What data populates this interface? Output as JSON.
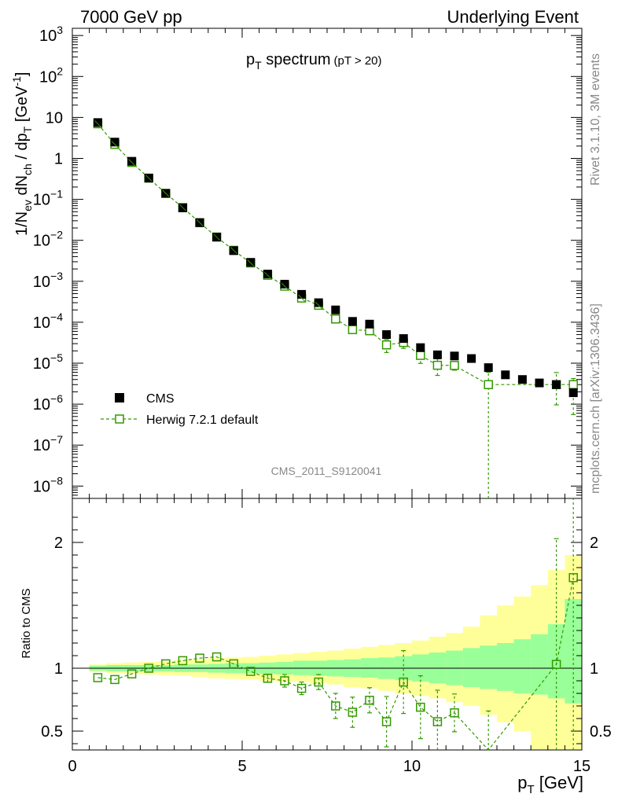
{
  "header": {
    "left": "7000 GeV pp",
    "right": "Underlying Event"
  },
  "side_labels": {
    "rivet": "Rivet 3.1.10,  3M events",
    "mcplots": "mcplots.cern.ch [arXiv:1306.3436]"
  },
  "chart_data": {
    "type": "scatter",
    "title_main": "p",
    "title_sub": "T",
    "title_rest": " spectrum",
    "title_cut": "(pT > 20)",
    "analysis_id": "CMS_2011_S9120041",
    "ylabel_parts": [
      "1/N",
      "ev",
      " dN",
      "ch",
      " / dp",
      "T",
      " [GeV",
      "-1",
      "]"
    ],
    "ratio_ylabel": "Ratio to CMS",
    "xlabel": "p",
    "xlabel_sub": "T",
    "xlabel_unit": " [GeV]",
    "xlim": [
      0,
      15
    ],
    "ylim": [
      5e-09,
      1500
    ],
    "ratio_ylim": [
      0.35,
      2.35
    ],
    "yscale": "log",
    "x_ticks": [
      "0",
      "5",
      "10",
      "15"
    ],
    "y_ticks": [
      {
        "v": 1000,
        "b": "10",
        "e": "3"
      },
      {
        "v": 100,
        "b": "10",
        "e": "2"
      },
      {
        "v": 10,
        "b": "10",
        "e": ""
      },
      {
        "v": 1,
        "b": "1",
        "e": ""
      },
      {
        "v": 0.1,
        "b": "10",
        "e": "−1"
      },
      {
        "v": 0.01,
        "b": "10",
        "e": "−2"
      },
      {
        "v": 0.001,
        "b": "10",
        "e": "−3"
      },
      {
        "v": 0.0001,
        "b": "10",
        "e": "−4"
      },
      {
        "v": 1e-05,
        "b": "10",
        "e": "−5"
      },
      {
        "v": 1e-06,
        "b": "10",
        "e": "−6"
      },
      {
        "v": 1e-07,
        "b": "10",
        "e": "−7"
      },
      {
        "v": 1e-08,
        "b": "10",
        "e": "−8"
      }
    ],
    "ratio_ticks": [
      "0.5",
      "1",
      "2"
    ],
    "legend_position": "bottom-left",
    "colors": {
      "cms": "#000000",
      "herwig": "#339900",
      "band_inner": "#99ff99",
      "band_outer": "#ffff99"
    },
    "series": [
      {
        "name": "CMS",
        "x": [
          0.75,
          1.25,
          1.75,
          2.25,
          2.75,
          3.25,
          3.75,
          4.25,
          4.75,
          5.25,
          5.75,
          6.25,
          6.75,
          7.25,
          7.75,
          8.25,
          8.75,
          9.25,
          9.75,
          10.25,
          10.75,
          11.25,
          11.75,
          12.25,
          12.75,
          13.25,
          13.75,
          14.25,
          14.75
        ],
        "y": [
          7.5,
          2.5,
          0.85,
          0.33,
          0.14,
          0.062,
          0.027,
          0.012,
          0.0056,
          0.0029,
          0.0015,
          0.00085,
          0.00048,
          0.0003,
          0.0002,
          0.000105,
          9e-05,
          5e-05,
          4e-05,
          2.4e-05,
          1.6e-05,
          1.5e-05,
          1.3e-05,
          7.8e-06,
          5.2e-06,
          4e-06,
          3.3e-06,
          3e-06,
          1.9e-06
        ]
      },
      {
        "name": "Herwig 7.2.1 default",
        "x": [
          0.75,
          1.25,
          1.75,
          2.25,
          2.75,
          3.25,
          3.75,
          4.25,
          4.75,
          5.25,
          5.75,
          6.25,
          6.75,
          7.25,
          7.75,
          8.25,
          8.75,
          9.25,
          9.75,
          10.25,
          10.75,
          11.25,
          12.25,
          14.25,
          14.75
        ],
        "y": [
          7.0,
          2.2,
          0.8,
          0.33,
          0.14,
          0.063,
          0.027,
          0.012,
          0.0057,
          0.0028,
          0.0014,
          0.00076,
          0.00039,
          0.00026,
          0.00012,
          6.6e-05,
          6.2e-05,
          2.8e-05,
          3.2e-05,
          1.55e-05,
          8.9e-06,
          8.8e-06,
          3e-06,
          3e-06,
          3e-06
        ],
        "ratio": [
          0.925,
          0.91,
          0.955,
          1.0,
          1.035,
          1.06,
          1.08,
          1.09,
          1.035,
          0.975,
          0.92,
          0.9,
          0.84,
          0.89,
          0.7,
          0.65,
          0.745,
          0.575,
          0.89,
          0.69,
          0.575,
          0.645,
          0.33,
          1.03,
          1.72
        ],
        "ratio_err_lo": [
          0,
          0,
          0,
          0,
          0,
          0,
          0,
          0,
          0,
          0,
          0.03,
          0.05,
          0.05,
          0.06,
          0.1,
          0.12,
          0.1,
          0.2,
          0.25,
          0.25,
          0.25,
          0.15,
          0.33,
          0.7,
          1.4
        ],
        "ratio_err_hi": [
          0,
          0,
          0,
          0,
          0,
          0,
          0,
          0,
          0,
          0,
          0.03,
          0.05,
          0.05,
          0.06,
          0.1,
          0.12,
          0.1,
          0.2,
          0.25,
          0.25,
          0.25,
          0.15,
          0.33,
          1.0,
          0.7
        ]
      }
    ],
    "bands": {
      "edges": [
        0.5,
        1.0,
        1.5,
        2.0,
        2.5,
        3.0,
        3.5,
        4.0,
        4.5,
        5.0,
        5.5,
        6.0,
        6.5,
        7.0,
        7.5,
        8.0,
        8.5,
        9.0,
        9.5,
        10.0,
        10.5,
        11.0,
        11.5,
        12.0,
        12.5,
        13.0,
        13.5,
        14.0,
        14.5,
        15.0
      ],
      "inner_lo": [
        0.98,
        0.975,
        0.975,
        0.975,
        0.975,
        0.97,
        0.97,
        0.965,
        0.96,
        0.96,
        0.955,
        0.95,
        0.945,
        0.94,
        0.935,
        0.93,
        0.925,
        0.915,
        0.905,
        0.895,
        0.88,
        0.865,
        0.85,
        0.835,
        0.82,
        0.8,
        0.79,
        0.76,
        0.72
      ],
      "inner_hi": [
        1.02,
        1.025,
        1.025,
        1.025,
        1.025,
        1.03,
        1.03,
        1.035,
        1.04,
        1.04,
        1.045,
        1.05,
        1.06,
        1.06,
        1.065,
        1.07,
        1.08,
        1.085,
        1.095,
        1.11,
        1.125,
        1.14,
        1.16,
        1.18,
        1.2,
        1.23,
        1.27,
        1.35,
        1.55
      ],
      "outer_lo": [
        0.97,
        0.96,
        0.955,
        0.95,
        0.945,
        0.94,
        0.93,
        0.92,
        0.915,
        0.91,
        0.9,
        0.895,
        0.89,
        0.88,
        0.87,
        0.85,
        0.84,
        0.82,
        0.8,
        0.78,
        0.76,
        0.73,
        0.7,
        0.63,
        0.57,
        0.5,
        0.35,
        0.35,
        0.35
      ],
      "outer_hi": [
        1.03,
        1.04,
        1.045,
        1.05,
        1.055,
        1.065,
        1.07,
        1.08,
        1.085,
        1.09,
        1.1,
        1.11,
        1.12,
        1.13,
        1.14,
        1.155,
        1.17,
        1.185,
        1.2,
        1.22,
        1.25,
        1.28,
        1.33,
        1.42,
        1.5,
        1.57,
        1.66,
        1.78,
        1.9
      ]
    }
  }
}
